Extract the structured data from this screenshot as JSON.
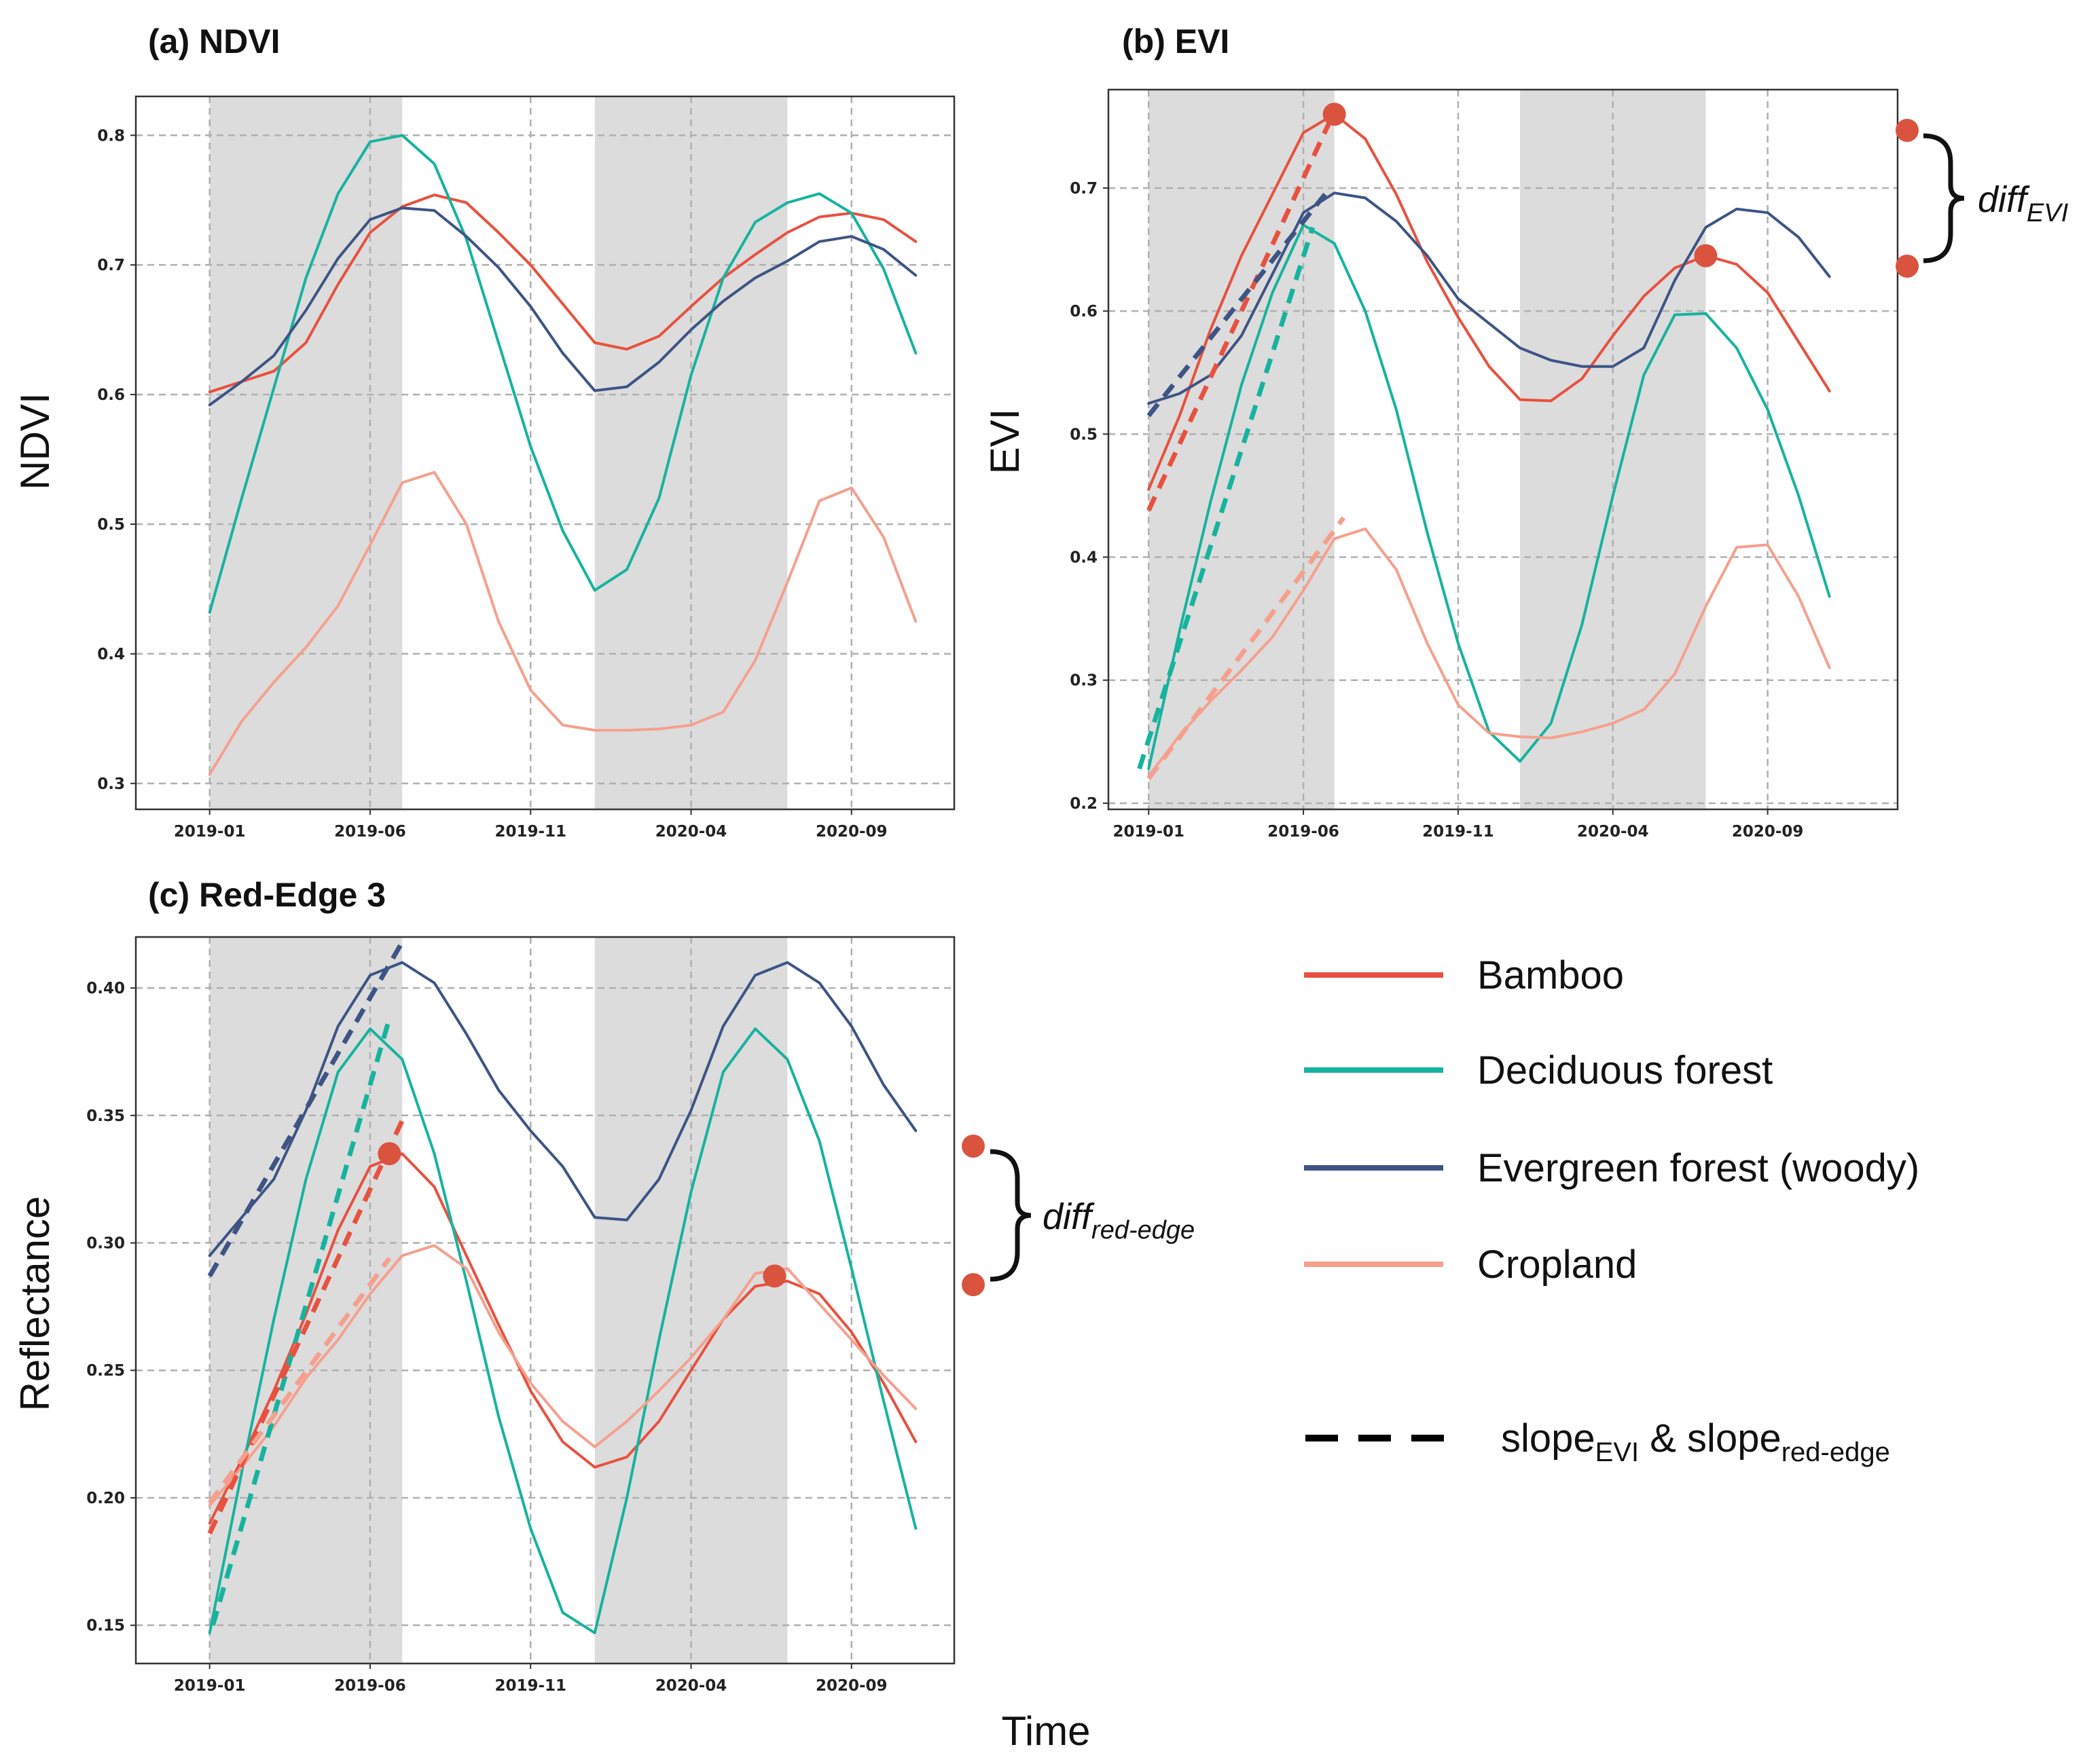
{
  "colors": {
    "bamboo": "#e8513f",
    "deciduous": "#16b39e",
    "evergreen": "#3d5485",
    "cropland": "#f5a08e",
    "marker": "#d9533f",
    "shade": "#dcdcdc",
    "grid": "#b0b0b0"
  },
  "x_title": "Time",
  "legend": {
    "items": [
      {
        "label": "Bamboo",
        "color_key": "bamboo"
      },
      {
        "label": "Deciduous forest",
        "color_key": "deciduous"
      },
      {
        "label": "Evergreen forest (woody)",
        "color_key": "evergreen"
      },
      {
        "label": "Cropland",
        "color_key": "cropland"
      }
    ],
    "slope_label": {
      "a": "slope",
      "a_sub": "EVI",
      "mid": " & slope",
      "b_sub": "red-edge"
    }
  },
  "annotations": {
    "diff_evi": {
      "main": "diff",
      "sub": "EVI"
    },
    "diff_red_edge": {
      "main": "diff",
      "sub": "red-edge"
    }
  },
  "chart_data": [
    {
      "id": "ndvi",
      "type": "line",
      "title": "(a) NDVI",
      "ylabel": "NDVI",
      "ylim": [
        0.28,
        0.83
      ],
      "yticks": [
        0.3,
        0.4,
        0.5,
        0.6,
        0.7,
        0.8
      ],
      "ytick_decimals": 1,
      "xlim": [
        -2.3,
        23.2
      ],
      "xticks": [
        {
          "x": 0,
          "label": "2019-01"
        },
        {
          "x": 5,
          "label": "2019-06"
        },
        {
          "x": 10,
          "label": "2019-11"
        },
        {
          "x": 15,
          "label": "2020-04"
        },
        {
          "x": 20,
          "label": "2020-09"
        }
      ],
      "grid": true,
      "shaded_ranges": [
        [
          0,
          6
        ],
        [
          12,
          18
        ]
      ],
      "series": [
        {
          "name": "Bamboo",
          "color_key": "bamboo",
          "x": [
            0,
            1,
            2,
            3,
            4,
            5,
            6,
            7,
            8,
            9,
            10,
            11,
            12,
            13,
            14,
            15,
            16,
            17,
            18,
            19,
            20,
            21,
            22
          ],
          "values": [
            0.602,
            0.61,
            0.618,
            0.64,
            0.685,
            0.725,
            0.745,
            0.754,
            0.748,
            0.725,
            0.7,
            0.67,
            0.64,
            0.635,
            0.645,
            0.668,
            0.69,
            0.708,
            0.725,
            0.737,
            0.74,
            0.735,
            0.718
          ]
        },
        {
          "name": "Deciduous forest",
          "color_key": "deciduous",
          "x": [
            0,
            1,
            2,
            3,
            4,
            5,
            6,
            7,
            8,
            9,
            10,
            11,
            12,
            13,
            14,
            15,
            16,
            17,
            18,
            19,
            20,
            21,
            22
          ],
          "values": [
            0.432,
            0.52,
            0.605,
            0.69,
            0.755,
            0.795,
            0.8,
            0.778,
            0.72,
            0.64,
            0.56,
            0.495,
            0.449,
            0.465,
            0.52,
            0.615,
            0.69,
            0.733,
            0.748,
            0.755,
            0.74,
            0.697,
            0.632
          ]
        },
        {
          "name": "Evergreen forest (woody)",
          "color_key": "evergreen",
          "x": [
            0,
            1,
            2,
            3,
            4,
            5,
            6,
            7,
            8,
            9,
            10,
            11,
            12,
            13,
            14,
            15,
            16,
            17,
            18,
            19,
            20,
            21,
            22
          ],
          "values": [
            0.592,
            0.61,
            0.63,
            0.665,
            0.705,
            0.735,
            0.744,
            0.742,
            0.722,
            0.698,
            0.668,
            0.632,
            0.603,
            0.606,
            0.625,
            0.65,
            0.672,
            0.69,
            0.703,
            0.718,
            0.722,
            0.712,
            0.692
          ]
        },
        {
          "name": "Cropland",
          "color_key": "cropland",
          "x": [
            0,
            1,
            2,
            3,
            4,
            5,
            6,
            7,
            8,
            9,
            10,
            11,
            12,
            13,
            14,
            15,
            16,
            17,
            18,
            19,
            20,
            21,
            22
          ],
          "values": [
            0.307,
            0.348,
            0.378,
            0.405,
            0.437,
            0.484,
            0.532,
            0.54,
            0.5,
            0.425,
            0.372,
            0.345,
            0.341,
            0.341,
            0.342,
            0.345,
            0.355,
            0.395,
            0.455,
            0.518,
            0.528,
            0.49,
            0.425
          ]
        }
      ]
    },
    {
      "id": "evi",
      "type": "line",
      "title": "(b) EVI",
      "ylabel": "EVI",
      "ylim": [
        0.195,
        0.78
      ],
      "yticks": [
        0.2,
        0.3,
        0.4,
        0.5,
        0.6,
        0.7
      ],
      "ytick_decimals": 1,
      "xlim": [
        -1.3,
        24.2
      ],
      "xticks": [
        {
          "x": 0,
          "label": "2019-01"
        },
        {
          "x": 5,
          "label": "2019-06"
        },
        {
          "x": 10,
          "label": "2019-11"
        },
        {
          "x": 15,
          "label": "2020-04"
        },
        {
          "x": 20,
          "label": "2020-09"
        }
      ],
      "grid": true,
      "shaded_ranges": [
        [
          0,
          6
        ],
        [
          12,
          18
        ]
      ],
      "series": [
        {
          "name": "Bamboo",
          "color_key": "bamboo",
          "x": [
            0,
            1,
            2,
            3,
            4,
            5,
            6,
            7,
            8,
            9,
            10,
            11,
            12,
            13,
            14,
            15,
            16,
            17,
            18,
            19,
            20,
            21,
            22
          ],
          "values": [
            0.455,
            0.515,
            0.585,
            0.645,
            0.695,
            0.745,
            0.76,
            0.74,
            0.695,
            0.64,
            0.595,
            0.555,
            0.528,
            0.527,
            0.545,
            0.58,
            0.612,
            0.635,
            0.645,
            0.638,
            0.615,
            0.575,
            0.535
          ]
        },
        {
          "name": "Deciduous forest",
          "color_key": "deciduous",
          "x": [
            0,
            1,
            2,
            3,
            4,
            5,
            6,
            7,
            8,
            9,
            10,
            11,
            12,
            13,
            14,
            15,
            16,
            17,
            18,
            19,
            20,
            21,
            22
          ],
          "values": [
            0.228,
            0.34,
            0.445,
            0.54,
            0.615,
            0.67,
            0.655,
            0.6,
            0.52,
            0.42,
            0.33,
            0.258,
            0.234,
            0.265,
            0.345,
            0.45,
            0.548,
            0.597,
            0.598,
            0.57,
            0.52,
            0.45,
            0.368
          ]
        },
        {
          "name": "Evergreen forest (woody)",
          "color_key": "evergreen",
          "x": [
            0,
            1,
            2,
            3,
            4,
            5,
            6,
            7,
            8,
            9,
            10,
            11,
            12,
            13,
            14,
            15,
            16,
            17,
            18,
            19,
            20,
            21,
            22
          ],
          "values": [
            0.525,
            0.533,
            0.548,
            0.58,
            0.63,
            0.68,
            0.696,
            0.692,
            0.673,
            0.645,
            0.61,
            0.59,
            0.57,
            0.56,
            0.555,
            0.555,
            0.57,
            0.625,
            0.668,
            0.683,
            0.68,
            0.66,
            0.628
          ]
        },
        {
          "name": "Cropland",
          "color_key": "cropland",
          "x": [
            0,
            1,
            2,
            3,
            4,
            5,
            6,
            7,
            8,
            9,
            10,
            11,
            12,
            13,
            14,
            15,
            16,
            17,
            18,
            19,
            20,
            21,
            22
          ],
          "values": [
            0.222,
            0.255,
            0.283,
            0.308,
            0.335,
            0.373,
            0.415,
            0.423,
            0.39,
            0.33,
            0.28,
            0.257,
            0.254,
            0.253,
            0.258,
            0.265,
            0.276,
            0.305,
            0.36,
            0.408,
            0.41,
            0.368,
            0.31
          ]
        }
      ],
      "slopes": [
        {
          "color_key": "bamboo",
          "x": [
            0,
            6
          ],
          "values": [
            0.438,
            0.762
          ]
        },
        {
          "color_key": "evergreen",
          "x": [
            0,
            5.7
          ],
          "values": [
            0.515,
            0.695
          ]
        },
        {
          "color_key": "deciduous",
          "x": [
            -0.3,
            5.3
          ],
          "values": [
            0.228,
            0.668
          ]
        },
        {
          "color_key": "cropland",
          "x": [
            0,
            6.3
          ],
          "values": [
            0.22,
            0.432
          ]
        }
      ],
      "markers": [
        {
          "x": 6,
          "value": 0.76
        },
        {
          "x": 18,
          "value": 0.645
        }
      ]
    },
    {
      "id": "rededge",
      "type": "line",
      "title": "(c) Red-Edge 3",
      "ylabel": "Reflectance",
      "ylim": [
        0.135,
        0.42
      ],
      "yticks": [
        0.15,
        0.2,
        0.25,
        0.3,
        0.35,
        0.4
      ],
      "ytick_decimals": 2,
      "xlim": [
        -2.3,
        23.2
      ],
      "xticks": [
        {
          "x": 0,
          "label": "2019-01"
        },
        {
          "x": 5,
          "label": "2019-06"
        },
        {
          "x": 10,
          "label": "2019-11"
        },
        {
          "x": 15,
          "label": "2020-04"
        },
        {
          "x": 20,
          "label": "2020-09"
        }
      ],
      "grid": true,
      "shaded_ranges": [
        [
          0,
          6
        ],
        [
          12,
          18
        ]
      ],
      "series": [
        {
          "name": "Bamboo",
          "color_key": "bamboo",
          "x": [
            0,
            1,
            2,
            3,
            4,
            5,
            6,
            7,
            8,
            9,
            10,
            11,
            12,
            13,
            14,
            15,
            16,
            17,
            18,
            19,
            20,
            21,
            22
          ],
          "values": [
            0.19,
            0.215,
            0.242,
            0.272,
            0.305,
            0.33,
            0.335,
            0.322,
            0.295,
            0.268,
            0.242,
            0.222,
            0.212,
            0.216,
            0.23,
            0.25,
            0.27,
            0.283,
            0.285,
            0.28,
            0.265,
            0.245,
            0.222
          ]
        },
        {
          "name": "Deciduous forest",
          "color_key": "deciduous",
          "x": [
            0,
            1,
            2,
            3,
            4,
            5,
            6,
            7,
            8,
            9,
            10,
            11,
            12,
            13,
            14,
            15,
            16,
            17,
            18,
            19,
            20,
            21,
            22
          ],
          "values": [
            0.147,
            0.21,
            0.27,
            0.325,
            0.367,
            0.384,
            0.372,
            0.335,
            0.285,
            0.232,
            0.188,
            0.155,
            0.147,
            0.2,
            0.262,
            0.32,
            0.367,
            0.384,
            0.372,
            0.34,
            0.29,
            0.238,
            0.188
          ]
        },
        {
          "name": "Evergreen forest (woody)",
          "color_key": "evergreen",
          "x": [
            0,
            1,
            2,
            3,
            4,
            5,
            6,
            7,
            8,
            9,
            10,
            11,
            12,
            13,
            14,
            15,
            16,
            17,
            18,
            19,
            20,
            21,
            22
          ],
          "values": [
            0.295,
            0.31,
            0.325,
            0.352,
            0.385,
            0.405,
            0.41,
            0.402,
            0.382,
            0.36,
            0.344,
            0.33,
            0.31,
            0.309,
            0.325,
            0.352,
            0.385,
            0.405,
            0.41,
            0.402,
            0.385,
            0.362,
            0.344
          ]
        },
        {
          "name": "Cropland",
          "color_key": "cropland",
          "x": [
            0,
            1,
            2,
            3,
            4,
            5,
            6,
            7,
            8,
            9,
            10,
            11,
            12,
            13,
            14,
            15,
            16,
            17,
            18,
            19,
            20,
            21,
            22
          ],
          "values": [
            0.197,
            0.212,
            0.228,
            0.247,
            0.262,
            0.28,
            0.295,
            0.299,
            0.29,
            0.265,
            0.245,
            0.23,
            0.22,
            0.23,
            0.242,
            0.255,
            0.27,
            0.288,
            0.29,
            0.276,
            0.262,
            0.248,
            0.235
          ]
        }
      ],
      "slopes": [
        {
          "color_key": "evergreen",
          "x": [
            0,
            6
          ],
          "values": [
            0.287,
            0.418
          ]
        },
        {
          "color_key": "deciduous",
          "x": [
            0.1,
            5.6
          ],
          "values": [
            0.15,
            0.388
          ]
        },
        {
          "color_key": "bamboo",
          "x": [
            0,
            6
          ],
          "values": [
            0.186,
            0.348
          ]
        },
        {
          "color_key": "cropland",
          "x": [
            0,
            5.6
          ],
          "values": [
            0.198,
            0.294
          ]
        }
      ],
      "markers": [
        {
          "x": 5.6,
          "value": 0.335
        },
        {
          "x": 17.6,
          "value": 0.287
        }
      ]
    }
  ]
}
